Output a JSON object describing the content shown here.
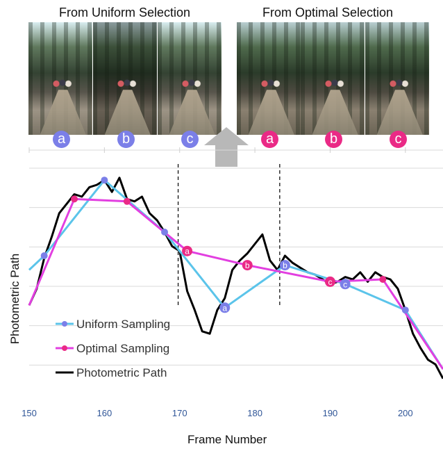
{
  "panels": {
    "left_title": "From Uniform Selection",
    "right_title": "From Optimal Selection",
    "left_labels": [
      "a",
      "b",
      "c"
    ],
    "right_labels": [
      "a",
      "b",
      "c"
    ],
    "uniform_color": "#7b7fe8",
    "optimal_color": "#ea2a86",
    "arrow_color": "#b8b8b8"
  },
  "chart_data": {
    "type": "line",
    "title": "",
    "xlabel": "Frame Number",
    "ylabel": "Photometric Path",
    "xlim": [
      150,
      205
    ],
    "ylim": [
      0,
      10
    ],
    "xticks": [
      150,
      160,
      170,
      180,
      190,
      200
    ],
    "grid": "horizontal",
    "legend": "bottom-left",
    "vlines": [
      169.8,
      183.3
    ],
    "series": [
      {
        "name": "Uniform Sampling",
        "color": "#5bc4ea",
        "marker_color": "#7b7fe8",
        "x": [
          150,
          152,
          160,
          168,
          176,
          184,
          192,
          200,
          205
        ],
        "y": [
          5.4,
          6.0,
          9.2,
          7.0,
          3.8,
          5.6,
          4.8,
          3.7,
          1.2
        ],
        "point_labels": [
          "",
          "",
          "",
          "",
          "a",
          "b",
          "c",
          "",
          ""
        ]
      },
      {
        "name": "Optimal Sampling",
        "color": "#e23fe0",
        "marker_color": "#ea2a86",
        "x": [
          150,
          156,
          163,
          171,
          179,
          190,
          197,
          205
        ],
        "y": [
          3.9,
          8.4,
          8.3,
          6.2,
          5.6,
          4.9,
          5.0,
          1.2
        ],
        "point_labels": [
          "",
          "",
          "",
          "a",
          "b",
          "c",
          "",
          ""
        ]
      },
      {
        "name": "Photometric Path",
        "color": "#000000",
        "x": [
          150,
          151,
          152,
          153,
          154,
          155,
          156,
          157,
          158,
          159,
          160,
          161,
          162,
          163,
          164,
          165,
          166,
          167,
          168,
          169,
          170,
          171,
          172,
          173,
          174,
          175,
          176,
          177,
          178,
          179,
          180,
          181,
          182,
          183,
          184,
          185,
          186,
          187,
          188,
          189,
          190,
          191,
          192,
          193,
          194,
          195,
          196,
          197,
          198,
          199,
          200,
          201,
          202,
          203,
          204,
          205
        ],
        "y": [
          3.9,
          4.6,
          5.9,
          6.8,
          7.8,
          8.2,
          8.6,
          8.5,
          8.9,
          9.0,
          9.2,
          8.7,
          9.3,
          8.4,
          8.3,
          8.5,
          7.8,
          7.5,
          7.0,
          6.4,
          6.2,
          4.5,
          3.7,
          2.8,
          2.7,
          3.7,
          4.2,
          5.4,
          5.8,
          6.1,
          6.5,
          6.9,
          5.8,
          5.4,
          6.0,
          5.7,
          5.5,
          5.3,
          5.2,
          5.0,
          4.8,
          4.9,
          5.1,
          5.0,
          5.3,
          4.9,
          5.3,
          5.1,
          5.0,
          4.6,
          3.7,
          2.7,
          2.1,
          1.6,
          1.4,
          0.8
        ]
      }
    ]
  }
}
